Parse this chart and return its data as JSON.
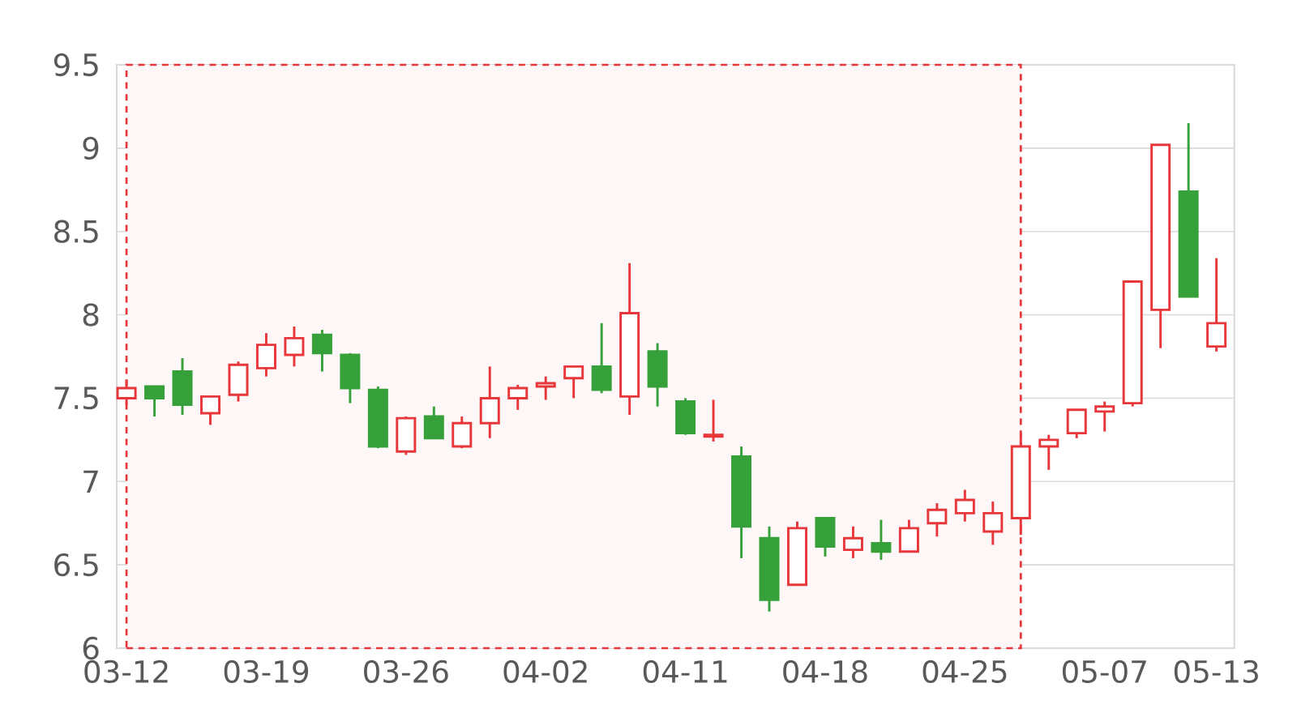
{
  "chart_data": {
    "type": "candlestick",
    "categories": [
      "03-12",
      null,
      null,
      null,
      null,
      "03-19",
      null,
      null,
      null,
      null,
      "03-26",
      null,
      null,
      null,
      null,
      "04-02",
      null,
      null,
      null,
      null,
      "04-11",
      null,
      null,
      null,
      null,
      "04-18",
      null,
      null,
      null,
      null,
      "04-25",
      null,
      null,
      null,
      null,
      "05-07",
      null,
      null,
      null,
      "05-13"
    ],
    "ohlc": [
      [
        7.5,
        7.61,
        7.46,
        7.56
      ],
      [
        7.57,
        7.57,
        7.39,
        7.5
      ],
      [
        7.66,
        7.74,
        7.4,
        7.46
      ],
      [
        7.41,
        7.51,
        7.34,
        7.51
      ],
      [
        7.52,
        7.72,
        7.48,
        7.7
      ],
      [
        7.68,
        7.89,
        7.63,
        7.82
      ],
      [
        7.76,
        7.93,
        7.69,
        7.86
      ],
      [
        7.88,
        7.91,
        7.66,
        7.77
      ],
      [
        7.76,
        7.77,
        7.47,
        7.56
      ],
      [
        7.55,
        7.57,
        7.2,
        7.21
      ],
      [
        7.18,
        7.39,
        7.16,
        7.38
      ],
      [
        7.39,
        7.45,
        7.26,
        7.26
      ],
      [
        7.21,
        7.39,
        7.2,
        7.35
      ],
      [
        7.35,
        7.69,
        7.26,
        7.5
      ],
      [
        7.5,
        7.58,
        7.43,
        7.56
      ],
      [
        7.57,
        7.63,
        7.49,
        7.59
      ],
      [
        7.62,
        7.69,
        7.5,
        7.69
      ],
      [
        7.69,
        7.95,
        7.53,
        7.55
      ],
      [
        7.51,
        8.31,
        7.4,
        8.01
      ],
      [
        7.78,
        7.83,
        7.45,
        7.57
      ],
      [
        7.48,
        7.5,
        7.28,
        7.29
      ],
      [
        7.27,
        7.49,
        7.24,
        7.28
      ],
      [
        7.15,
        7.21,
        6.54,
        6.73
      ],
      [
        6.66,
        6.73,
        6.22,
        6.29
      ],
      [
        6.38,
        6.76,
        6.38,
        6.72
      ],
      [
        6.78,
        6.78,
        6.55,
        6.61
      ],
      [
        6.59,
        6.73,
        6.54,
        6.66
      ],
      [
        6.63,
        6.77,
        6.53,
        6.58
      ],
      [
        6.58,
        6.77,
        6.58,
        6.72
      ],
      [
        6.75,
        6.87,
        6.67,
        6.83
      ],
      [
        6.81,
        6.95,
        6.76,
        6.89
      ],
      [
        6.7,
        6.88,
        6.62,
        6.81
      ],
      [
        6.78,
        7.29,
        6.68,
        7.21
      ],
      [
        7.21,
        7.28,
        7.07,
        7.25
      ],
      [
        7.29,
        7.43,
        7.26,
        7.43
      ],
      [
        7.42,
        7.48,
        7.3,
        7.45
      ],
      [
        7.47,
        8.2,
        7.45,
        8.2
      ],
      [
        8.03,
        9.02,
        7.8,
        9.02
      ],
      [
        8.74,
        9.15,
        8.11,
        8.11
      ],
      [
        7.81,
        8.34,
        7.78,
        7.95
      ]
    ],
    "colors": [
      "#e8373b",
      "#36a03a",
      "#36a03a",
      "#e8373b",
      "#e8373b",
      "#e8373b",
      "#e8373b",
      "#36a03a",
      "#36a03a",
      "#36a03a",
      "#e8373b",
      "#36a03a",
      "#e8373b",
      "#e8373b",
      "#e8373b",
      "#e8373b",
      "#e8373b",
      "#36a03a",
      "#e8373b",
      "#36a03a",
      "#36a03a",
      "#e8373b",
      "#36a03a",
      "#36a03a",
      "#e8373b",
      "#36a03a",
      "#e8373b",
      "#36a03a",
      "#e8373b",
      "#e8373b",
      "#e8373b",
      "#e8373b",
      "#e8373b",
      "#e8373b",
      "#e8373b",
      "#e8373b",
      "#e8373b",
      "#e8373b",
      "#36a03a",
      "#e8373b"
    ],
    "ylim": [
      6,
      9.5
    ],
    "yticks": [
      6,
      6.5,
      7,
      7.5,
      8,
      8.5,
      9,
      9.5
    ],
    "grid": "y"
  }
}
